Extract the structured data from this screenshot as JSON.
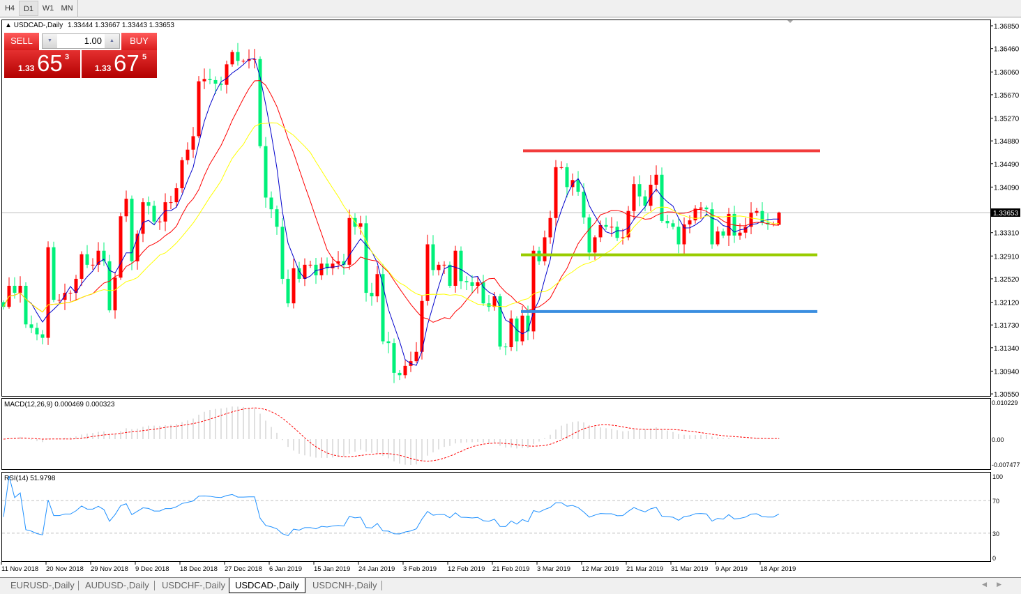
{
  "toolbar": {
    "timeframes": [
      {
        "label": "H4"
      },
      {
        "label": "D1",
        "selected": true
      },
      {
        "label": "W1"
      },
      {
        "label": "MN"
      }
    ]
  },
  "chart": {
    "symbol": "USDCAD-,Daily",
    "ohlc": "1.33444 1.33667 1.33443 1.33653",
    "current_price": "1.33653",
    "colors": {
      "bull": "#ff0000",
      "bear": "#00f07a",
      "ma_fast": "#0000cc",
      "ma_mid": "#ff0000",
      "ma_slow": "#ffff00",
      "resistance": "#f23c3c",
      "support_mid": "#99cc00",
      "support_low": "#3a8ee0"
    },
    "price_axis": [
      "1.36850",
      "1.36460",
      "1.36060",
      "1.35670",
      "1.35270",
      "1.34880",
      "1.34490",
      "1.34090",
      "1.33310",
      "1.32910",
      "1.32520",
      "1.32120",
      "1.31730",
      "1.31340",
      "1.30940",
      "1.30550"
    ],
    "horizontal_levels": [
      {
        "price": 1.3471,
        "color": "#f23c3c"
      },
      {
        "price": 1.3293,
        "color": "#99cc00"
      },
      {
        "price": 1.3196,
        "color": "#3a8ee0"
      }
    ],
    "date_axis": [
      "11 Nov 2018",
      "20 Nov 2018",
      "29 Nov 2018",
      "9 Dec 2018",
      "18 Dec 2018",
      "27 Dec 2018",
      "6 Jan 2019",
      "15 Jan 2019",
      "24 Jan 2019",
      "3 Feb 2019",
      "12 Feb 2019",
      "21 Feb 2019",
      "3 Mar 2019",
      "12 Mar 2019",
      "21 Mar 2019",
      "31 Mar 2019",
      "9 Apr 2019",
      "18 Apr 2019"
    ],
    "last_bar": {
      "open": 1.33444,
      "high": 1.33667,
      "low": 1.33443,
      "close": 1.33653
    },
    "closes": [
      1.3204,
      1.324,
      1.3228,
      1.324,
      1.3174,
      1.3168,
      1.3157,
      1.3151,
      1.3306,
      1.3216,
      1.3216,
      1.3228,
      1.3228,
      1.3252,
      1.3294,
      1.3276,
      1.3276,
      1.33,
      1.3282,
      1.3198,
      1.3254,
      1.3359,
      1.3389,
      1.3282,
      1.3329,
      1.3383,
      1.3377,
      1.335,
      1.335,
      1.3383,
      1.3383,
      1.3407,
      1.3455,
      1.3473,
      1.3496,
      1.359,
      1.3594,
      1.3592,
      1.3586,
      1.3584,
      1.3619,
      1.364,
      1.3625,
      1.3625,
      1.3628,
      1.3628,
      1.3479,
      1.3391,
      1.3371,
      1.3341,
      1.3252,
      1.321,
      1.327,
      1.3252,
      1.3276,
      1.3276,
      1.3258,
      1.3278,
      1.327,
      1.3278,
      1.3282,
      1.3276,
      1.3356,
      1.3341,
      1.3347,
      1.3228,
      1.3222,
      1.326,
      1.3145,
      1.3142,
      1.3091,
      1.3087,
      1.3103,
      1.3111,
      1.3127,
      1.3214,
      1.3311,
      1.3267,
      1.3276,
      1.3276,
      1.324,
      1.33,
      1.3248,
      1.3246,
      1.324,
      1.3246,
      1.321,
      1.3204,
      1.3222,
      1.3136,
      1.3135,
      1.3184,
      1.3145,
      1.3189,
      1.3162,
      1.33,
      1.3282,
      1.3323,
      1.3356,
      1.3443,
      1.3443,
      1.3409,
      1.3421,
      1.3401,
      1.3357,
      1.3297,
      1.3323,
      1.3344,
      1.3341,
      1.3341,
      1.3322,
      1.3323,
      1.3368,
      1.3414,
      1.3393,
      1.3377,
      1.3413,
      1.343,
      1.3351,
      1.3347,
      1.3341,
      1.3311,
      1.3345,
      1.3352,
      1.3372,
      1.3374,
      1.3371,
      1.3311,
      1.3333,
      1.3326,
      1.3363,
      1.3326,
      1.3331,
      1.3341,
      1.3365,
      1.3368,
      1.3348,
      1.3345,
      1.3345,
      1.3365
    ]
  },
  "macd": {
    "label": "MACD(12,26,9) 0.000469 0.000323",
    "axis": [
      "0.010229",
      "0.00",
      "-0.007477"
    ],
    "max": 0.010229,
    "min": -0.007477
  },
  "rsi": {
    "label": "RSI(14) 51.9798",
    "axis": [
      "100",
      "70",
      "30",
      "0"
    ],
    "levels": [
      70,
      30
    ]
  },
  "trade": {
    "sell_label": "SELL",
    "buy_label": "BUY",
    "lot": "1.00",
    "sell": {
      "small": "1.33",
      "big": "65",
      "pip": "3"
    },
    "buy": {
      "small": "1.33",
      "big": "67",
      "pip": "5"
    }
  },
  "tabs": [
    {
      "label": "EURUSD-,Daily"
    },
    {
      "label": "AUDUSD-,Daily"
    },
    {
      "label": "USDCHF-,Daily"
    },
    {
      "label": "USDCAD-,Daily",
      "selected": true
    },
    {
      "label": "USDCNH-,Daily"
    }
  ]
}
